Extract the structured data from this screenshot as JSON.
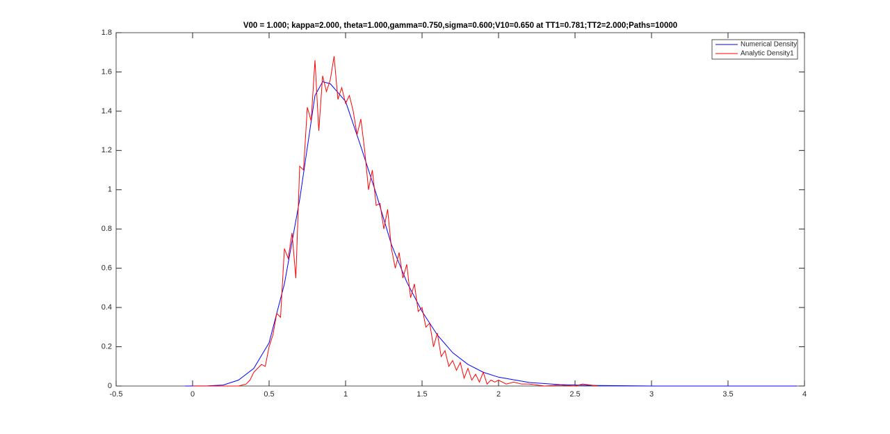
{
  "chart_data": {
    "type": "line",
    "title": "V00 = 1.000; kappa=2.000, theta=1.000,gamma=0.750,sigma=0.600;V10=0.650 at TT1=0.781;TT2=2.000;Paths=10000",
    "xlim": [
      -0.5,
      4
    ],
    "ylim": [
      0,
      1.8
    ],
    "xticks": [
      -0.5,
      0,
      0.5,
      1,
      1.5,
      2,
      2.5,
      3,
      3.5,
      4
    ],
    "yticks": [
      0,
      0.2,
      0.4,
      0.6,
      0.8,
      1,
      1.2,
      1.4,
      1.6,
      1.8
    ],
    "legend": "top-right",
    "series": [
      {
        "name": "Numerical Density",
        "color": "#0000ff",
        "x": [
          -0.05,
          0.1,
          0.2,
          0.3,
          0.4,
          0.5,
          0.6,
          0.7,
          0.8,
          0.85,
          0.9,
          1.0,
          1.1,
          1.2,
          1.3,
          1.4,
          1.5,
          1.6,
          1.7,
          1.8,
          1.9,
          2.0,
          2.2,
          2.4,
          2.6,
          3.0,
          3.5,
          3.95
        ],
        "values": [
          0,
          0.001,
          0.005,
          0.03,
          0.09,
          0.22,
          0.52,
          0.95,
          1.48,
          1.55,
          1.54,
          1.45,
          1.22,
          0.98,
          0.72,
          0.53,
          0.38,
          0.26,
          0.17,
          0.11,
          0.07,
          0.045,
          0.018,
          0.007,
          0.003,
          0,
          0,
          0
        ]
      },
      {
        "name": "Analytic Density1",
        "color": "#ff0000",
        "x": [
          0,
          0.3,
          0.35,
          0.375,
          0.4,
          0.425,
          0.45,
          0.475,
          0.5,
          0.525,
          0.55,
          0.575,
          0.6,
          0.625,
          0.65,
          0.675,
          0.7,
          0.725,
          0.75,
          0.775,
          0.8,
          0.825,
          0.85,
          0.875,
          0.9,
          0.925,
          0.95,
          0.975,
          1.0,
          1.025,
          1.05,
          1.075,
          1.1,
          1.125,
          1.15,
          1.175,
          1.2,
          1.225,
          1.25,
          1.275,
          1.3,
          1.325,
          1.35,
          1.375,
          1.4,
          1.425,
          1.45,
          1.475,
          1.5,
          1.525,
          1.55,
          1.575,
          1.6,
          1.625,
          1.65,
          1.675,
          1.7,
          1.725,
          1.75,
          1.775,
          1.8,
          1.825,
          1.85,
          1.875,
          1.9,
          1.925,
          1.95,
          1.975,
          2.0,
          2.05,
          2.1,
          2.15,
          2.2,
          2.3,
          2.4,
          2.5,
          2.55,
          2.65
        ],
        "values": [
          0,
          0,
          0.01,
          0.03,
          0.07,
          0.09,
          0.11,
          0.1,
          0.2,
          0.26,
          0.37,
          0.35,
          0.7,
          0.65,
          0.78,
          0.55,
          1.12,
          1.1,
          1.42,
          1.35,
          1.66,
          1.3,
          1.58,
          1.5,
          1.56,
          1.68,
          1.46,
          1.52,
          1.44,
          1.48,
          1.4,
          1.28,
          1.36,
          1.2,
          1.0,
          1.1,
          0.92,
          0.93,
          0.8,
          0.9,
          0.7,
          0.6,
          0.68,
          0.55,
          0.62,
          0.45,
          0.52,
          0.38,
          0.4,
          0.3,
          0.32,
          0.2,
          0.27,
          0.15,
          0.18,
          0.1,
          0.13,
          0.08,
          0.12,
          0.04,
          0.09,
          0.03,
          0.06,
          0.02,
          0.07,
          0.01,
          0.03,
          0.02,
          0.03,
          0.01,
          0.02,
          0.01,
          0.01,
          0,
          0.005,
          0,
          0.01,
          0
        ]
      }
    ]
  }
}
